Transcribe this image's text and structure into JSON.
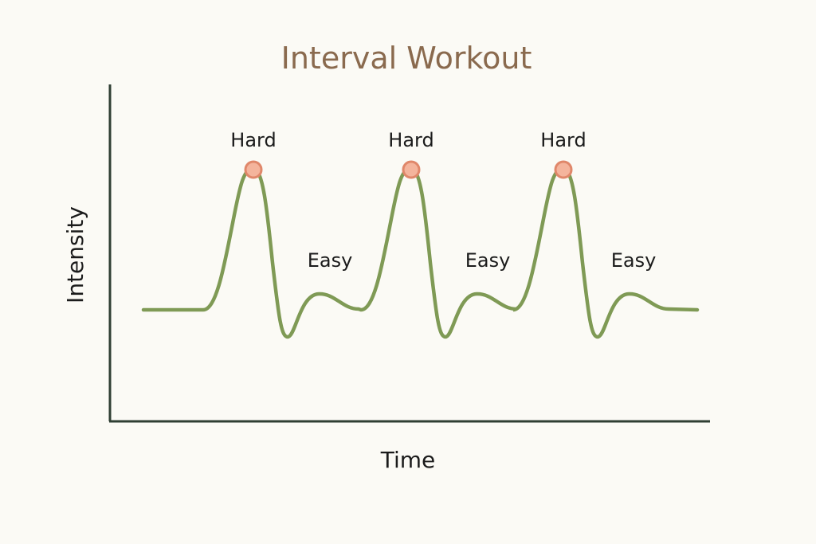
{
  "chart_data": {
    "type": "line",
    "title": "Interval Workout",
    "xlabel": "Time",
    "ylabel": "Intensity",
    "grid": false,
    "intervals": [
      {
        "peak_label": "Hard",
        "recovery_label": "Easy"
      },
      {
        "peak_label": "Hard",
        "recovery_label": "Easy"
      },
      {
        "peak_label": "Hard",
        "recovery_label": "Easy"
      }
    ],
    "colors": {
      "title": "#8a6a4e",
      "line": "#7f9a55",
      "axis": "#2f3f33",
      "peak_marker_fill": "#f4b49c",
      "peak_marker_stroke": "#e0876a",
      "background": "#fbfaf5"
    }
  }
}
